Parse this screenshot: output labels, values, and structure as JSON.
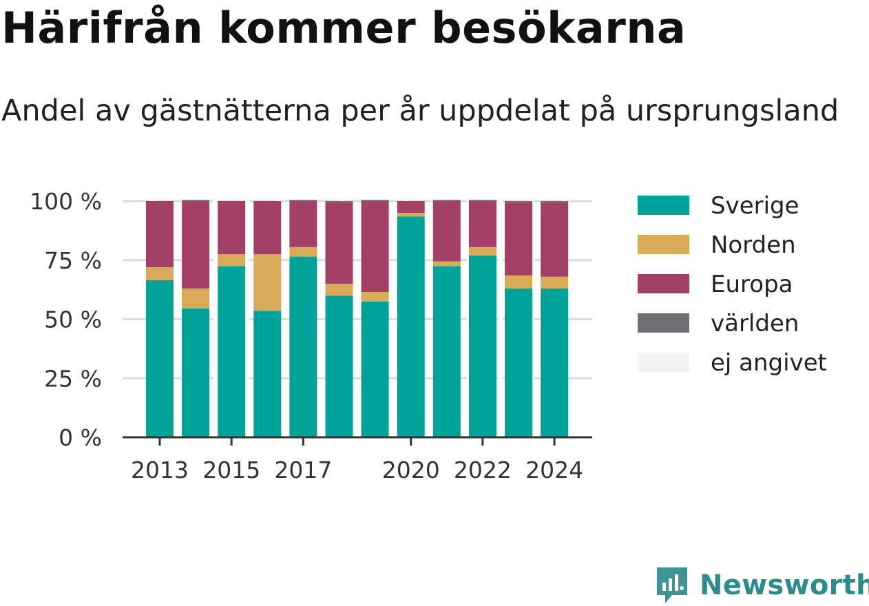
{
  "title": "Härifrån kommer besökarna",
  "subtitle": "Andel av gästnätterna per år uppdelat på ursprungsland",
  "brand": {
    "name": "Newsworthy",
    "color": "#3d9593"
  },
  "chart_data": {
    "type": "bar",
    "stacked": true,
    "categories": [
      "2013",
      "2014",
      "2015",
      "2016",
      "2017",
      "2018",
      "2019",
      "2020",
      "2021",
      "2022",
      "2023",
      "2024"
    ],
    "x_tick_labels": [
      "2013",
      "",
      "2015",
      "",
      "2017",
      "",
      "",
      "2020",
      "",
      "2022",
      "",
      "2024"
    ],
    "y_ticks": [
      0,
      25,
      50,
      75,
      100
    ],
    "y_tick_labels": [
      "0 %",
      "25 %",
      "50 %",
      "75 %",
      "100 %"
    ],
    "ylim": [
      0,
      100
    ],
    "grid": true,
    "legend_position": "right",
    "series": [
      {
        "name": "Sverige",
        "color": "#00a39a",
        "values": [
          66.5,
          54.5,
          72.5,
          53.5,
          76.5,
          60,
          57.5,
          93.5,
          72.5,
          77,
          63,
          63
        ]
      },
      {
        "name": "Norden",
        "color": "#d9ab58",
        "values": [
          5.5,
          8.5,
          5,
          24,
          4,
          5,
          4,
          1.5,
          2,
          3.5,
          5.5,
          5
        ]
      },
      {
        "name": "Europa",
        "color": "#a34067",
        "values": [
          28,
          37,
          22.5,
          22.5,
          19.5,
          34.5,
          38.5,
          5,
          25.5,
          19.5,
          31,
          31.5
        ]
      },
      {
        "name": "världen",
        "color": "#6e6e75",
        "values": [
          0,
          0.5,
          0,
          0,
          0.5,
          0.5,
          0.5,
          0,
          0.5,
          0.5,
          0.5,
          0.5
        ]
      },
      {
        "name": "ej angivet",
        "color": "#f3f3f1",
        "values": [
          0,
          0,
          0,
          0,
          0,
          0,
          0,
          0,
          0,
          0,
          0,
          0
        ]
      }
    ]
  }
}
